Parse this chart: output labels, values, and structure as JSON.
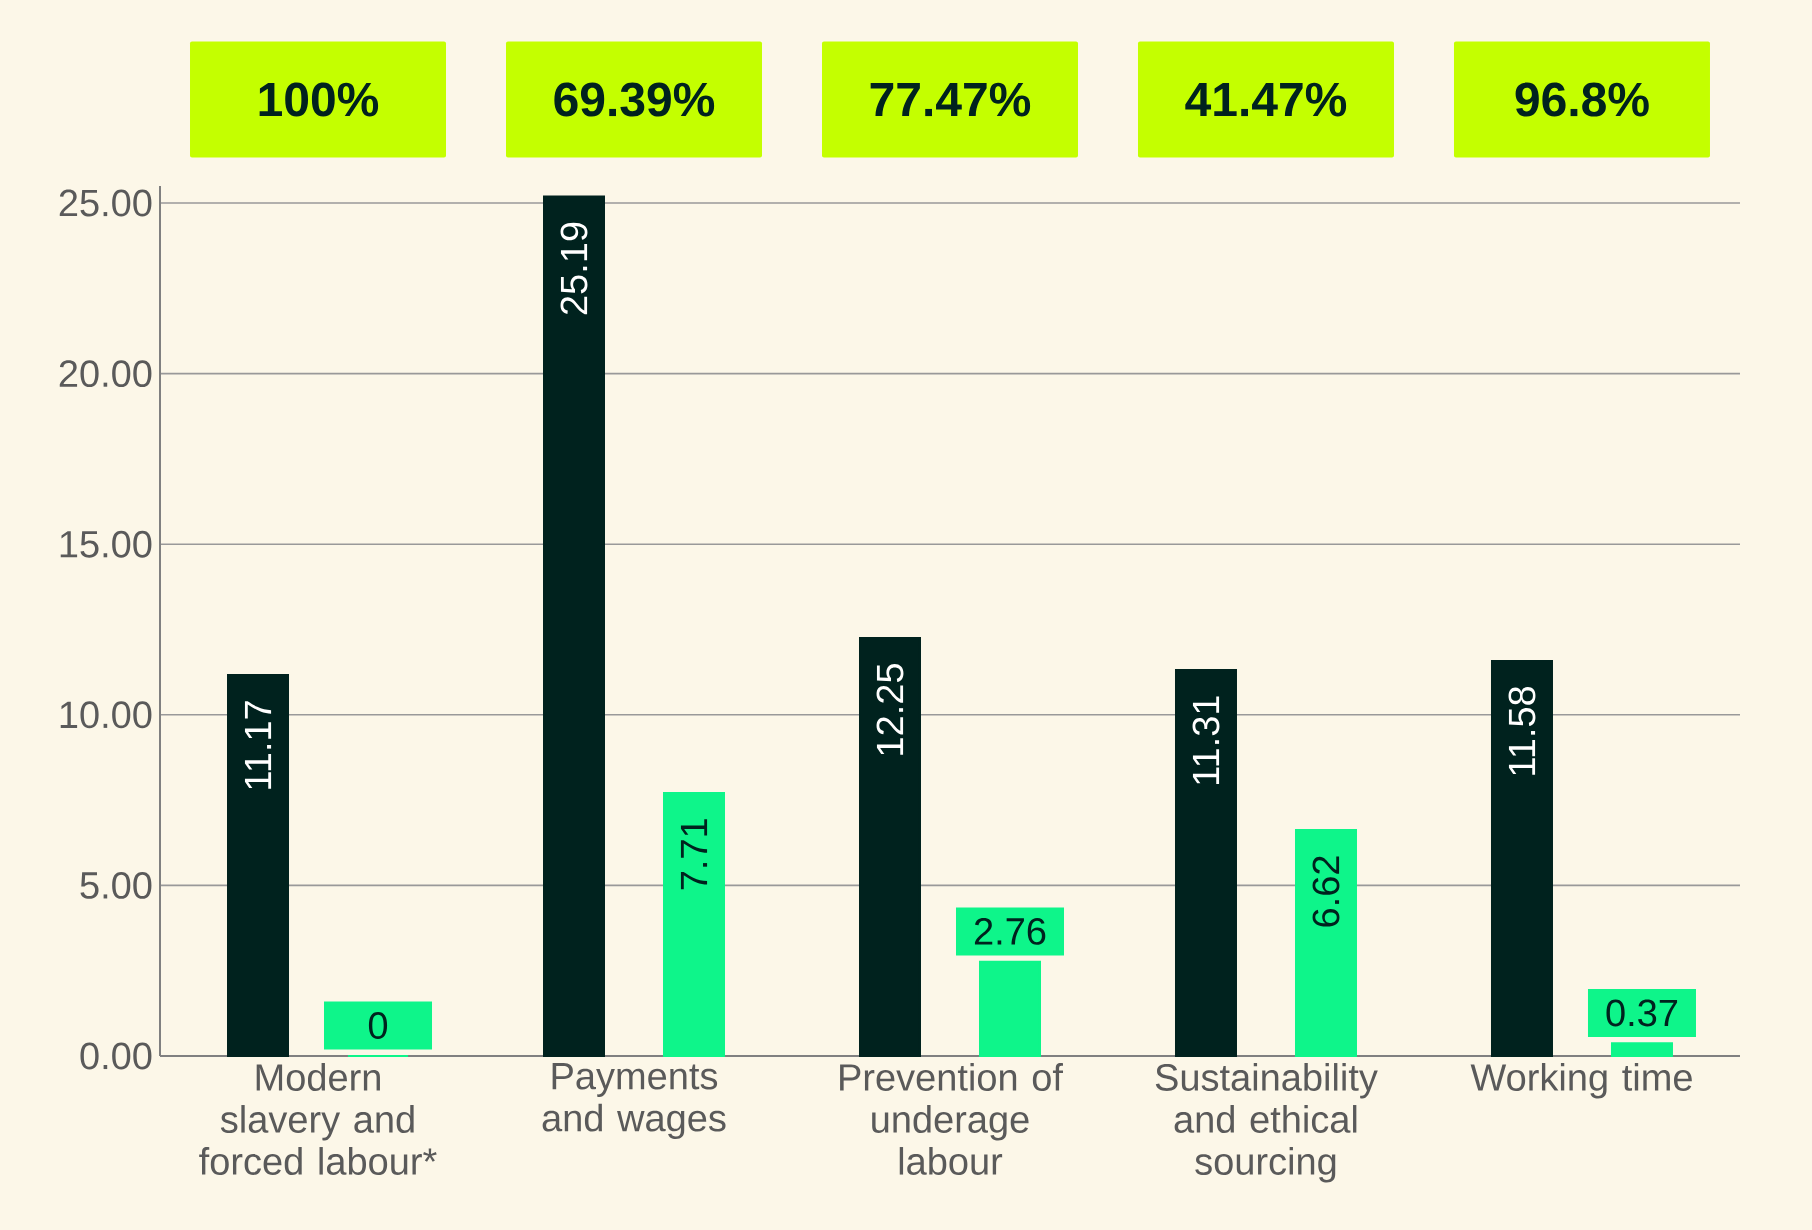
{
  "chart_data": {
    "type": "bar",
    "categories": [
      "Modern slavery and forced labour*",
      "Payments and wages",
      "Prevention of underage labour",
      "Sustainability and ethical sourcing",
      "Working time"
    ],
    "series": [
      {
        "color": "#00221e",
        "values": [
          11.17,
          25.19,
          12.25,
          11.31,
          11.58
        ]
      },
      {
        "color": "#0ef58a",
        "values": [
          0,
          7.71,
          2.76,
          6.62,
          0.37
        ]
      }
    ],
    "ylim": [
      0,
      25.5
    ],
    "yticks": [
      {
        "value": 0,
        "label": "0.00"
      },
      {
        "value": 5,
        "label": "5.00"
      },
      {
        "value": 10,
        "label": "10.00"
      },
      {
        "value": 15,
        "label": "15.00"
      },
      {
        "value": 20,
        "label": "20.00"
      },
      {
        "value": 25,
        "label": "25.00"
      }
    ],
    "grid": "y",
    "data_labels": true,
    "annotations": [
      "100%",
      "69.39%",
      "77.47%",
      "41.47%",
      "96.8%"
    ]
  }
}
